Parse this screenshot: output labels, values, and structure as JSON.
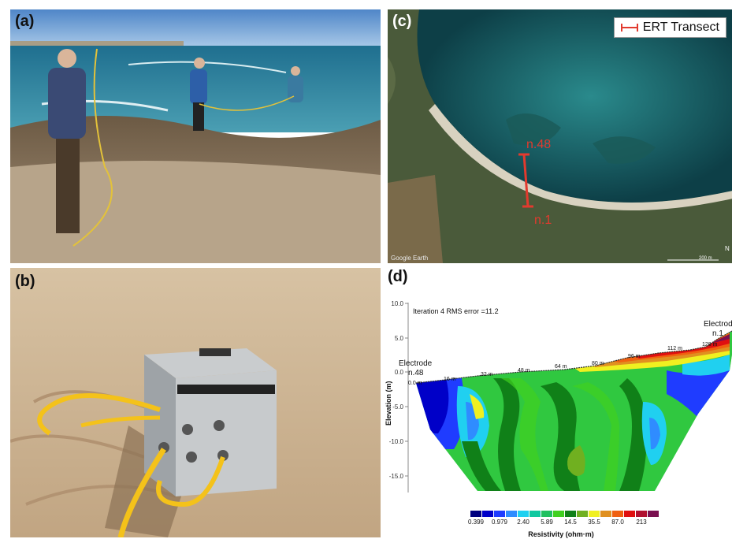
{
  "panels": {
    "a": {
      "label": "(a)"
    },
    "b": {
      "label": "(b)"
    },
    "c": {
      "label": "(c)",
      "legend_label": "ERT Transect",
      "marker_top": "n.48",
      "marker_bottom": "n.1",
      "watermark": "Google Earth",
      "scale_text": "200 m",
      "north": "N",
      "transect_color": "#e23a2e"
    },
    "d": {
      "label": "(d)",
      "iteration_text": "Iteration 4 RMS error =11.2",
      "ylabel": "Elevation (m)",
      "y_ticks": [
        "10.0",
        "5.0",
        "0.0",
        "-5.0",
        "-10.0",
        "-15.0"
      ],
      "electrode_left": [
        "Electrode",
        "n.48"
      ],
      "electrode_right": [
        "Electrode",
        "n.1"
      ],
      "distance_marks": [
        "0.0 m",
        "16 m",
        "32 m",
        "48 m",
        "64 m",
        "80 m",
        "96 m",
        "112 m",
        "128 m"
      ],
      "colorbar_labels": [
        "0.399",
        "0.979",
        "2.40",
        "5.89",
        "14.5",
        "35.5",
        "87.0",
        "213"
      ],
      "colorbar_colors": [
        "#00007f",
        "#0000c8",
        "#1f3cff",
        "#2f8cff",
        "#20d0f0",
        "#10c8a0",
        "#20c060",
        "#40d020",
        "#108018",
        "#70b020",
        "#f0f020",
        "#e09020",
        "#f06010",
        "#e01010",
        "#b01030",
        "#7a1050"
      ],
      "colorbar_title": "Resistivity (ohm·m)"
    }
  }
}
